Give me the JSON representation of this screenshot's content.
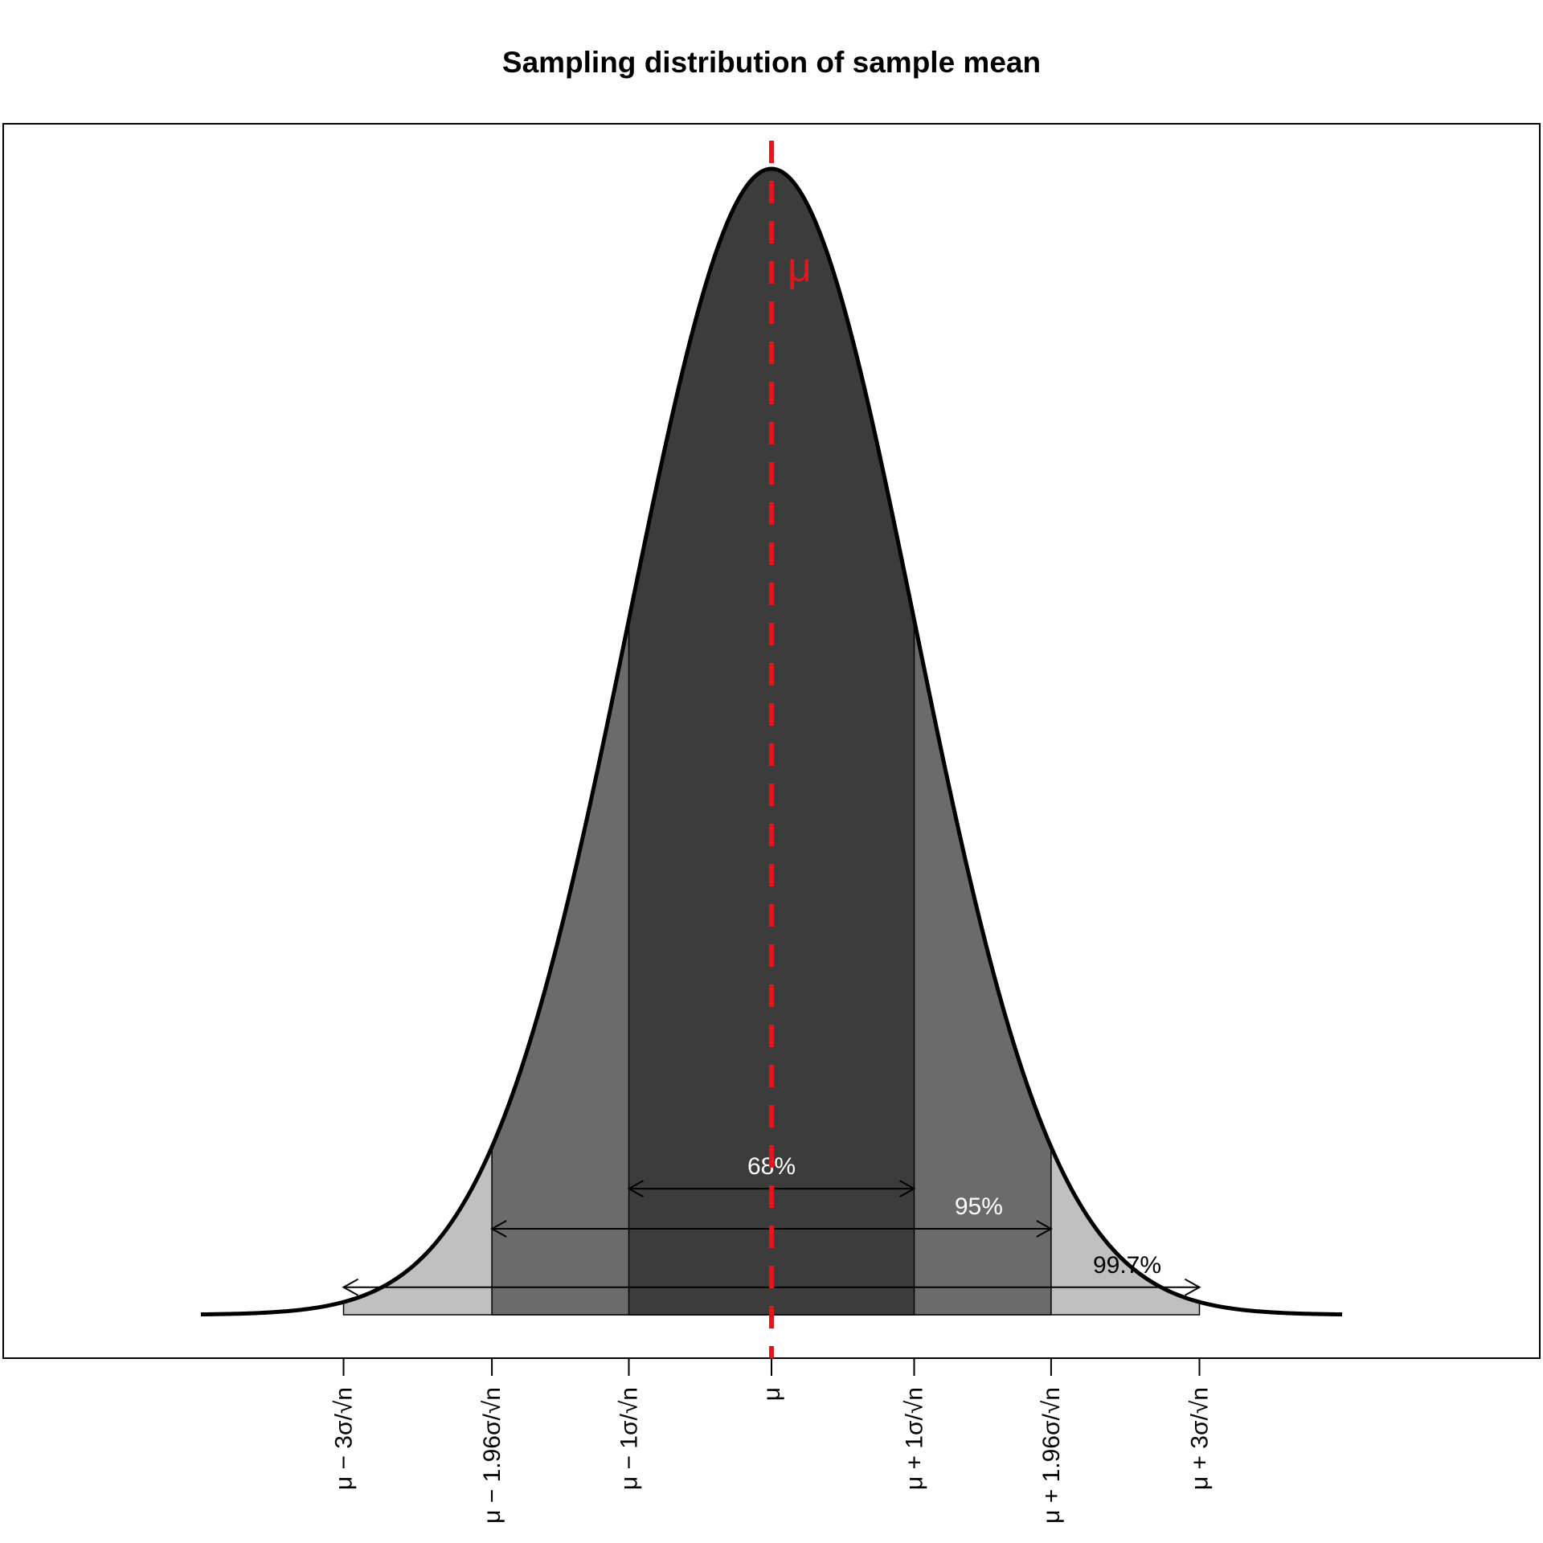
{
  "chart_data": {
    "type": "area",
    "title": "Sampling distribution of sample mean",
    "xlabel": "",
    "ylabel": "",
    "distribution": "normal",
    "x_unit": "standard errors (σ/√n) from μ",
    "xlim": [
      -4.5,
      4.5
    ],
    "curve_color": "#000000",
    "regions": [
      {
        "from": -3,
        "to": 3,
        "color": "#c0c0c0"
      },
      {
        "from": -1.96,
        "to": 1.96,
        "color": "#6b6b6b"
      },
      {
        "from": -1,
        "to": 1,
        "color": "#3c3c3c"
      }
    ],
    "intervals": [
      {
        "from": -1,
        "to": 1,
        "label": "68%",
        "label_color": "#ffffff",
        "arrow_density": 0.11
      },
      {
        "from": -1.96,
        "to": 1.96,
        "label": "95%",
        "label_color": "#ffffff",
        "arrow_density": 0.075
      },
      {
        "from": -3,
        "to": 3,
        "label": "99.7%",
        "label_color": "#000000",
        "arrow_density": 0.024
      }
    ],
    "mean_line": {
      "x": 0,
      "label": "μ",
      "color": "#e8141b",
      "style": "dashed"
    },
    "ticks": [
      {
        "x": -3,
        "label": "μ − 3σ/√n"
      },
      {
        "x": -1.96,
        "label": "μ − 1.96σ/√n"
      },
      {
        "x": -1,
        "label": "μ − 1σ/√n"
      },
      {
        "x": 0,
        "label": "μ"
      },
      {
        "x": 1,
        "label": "μ + 1σ/√n"
      },
      {
        "x": 1.96,
        "label": "μ + 1.96σ/√n"
      },
      {
        "x": 3,
        "label": "μ + 3σ/√n"
      }
    ]
  }
}
